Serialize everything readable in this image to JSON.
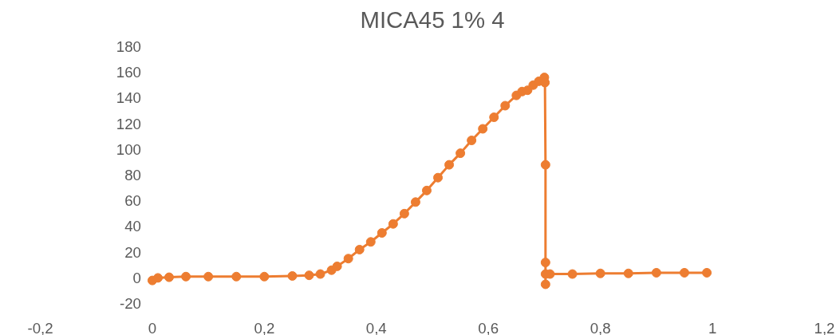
{
  "chart_data": {
    "type": "line",
    "title": "MICA45 1% 4",
    "marker": "circle",
    "grid": false,
    "xlim": [
      -0.2,
      1.2
    ],
    "xticks": [
      {
        "value": -0.2,
        "label": "-0,2"
      },
      0,
      {
        "value": 0.2,
        "label": "0,2"
      },
      {
        "value": 0.4,
        "label": "0,4"
      },
      {
        "value": 0.6,
        "label": "0,6"
      },
      {
        "value": 0.8,
        "label": "0,8"
      },
      1,
      {
        "value": 1.2,
        "label": "1,2"
      }
    ],
    "ylim": [
      -20,
      180
    ],
    "yticks": [
      -20,
      0,
      20,
      40,
      60,
      80,
      100,
      120,
      140,
      160,
      180
    ],
    "series": [
      {
        "color": "#ed7d31",
        "x": [
          0,
          0.01,
          0.03,
          0.06,
          0.1,
          0.15,
          0.2,
          0.25,
          0.28,
          0.3,
          0.32,
          0.33,
          0.35,
          0.37,
          0.39,
          0.41,
          0.43,
          0.45,
          0.47,
          0.49,
          0.51,
          0.53,
          0.55,
          0.57,
          0.59,
          0.61,
          0.63,
          0.65,
          0.66,
          0.67,
          0.68,
          0.69,
          0.7,
          0.701,
          0.702,
          0.702,
          0.702,
          0.702,
          0.71,
          0.75,
          0.8,
          0.85,
          0.9,
          0.95,
          0.99
        ],
        "values": [
          -2,
          0,
          0.5,
          1,
          1,
          1,
          1,
          1.5,
          2,
          3,
          6,
          9,
          15,
          22,
          28,
          35,
          42,
          50,
          59,
          68,
          78,
          88,
          97,
          107,
          116,
          125,
          134,
          142,
          145,
          146,
          150,
          153,
          156,
          152,
          88,
          12,
          -5,
          3,
          3,
          3,
          3.5,
          3.5,
          4,
          4,
          4
        ]
      }
    ]
  }
}
